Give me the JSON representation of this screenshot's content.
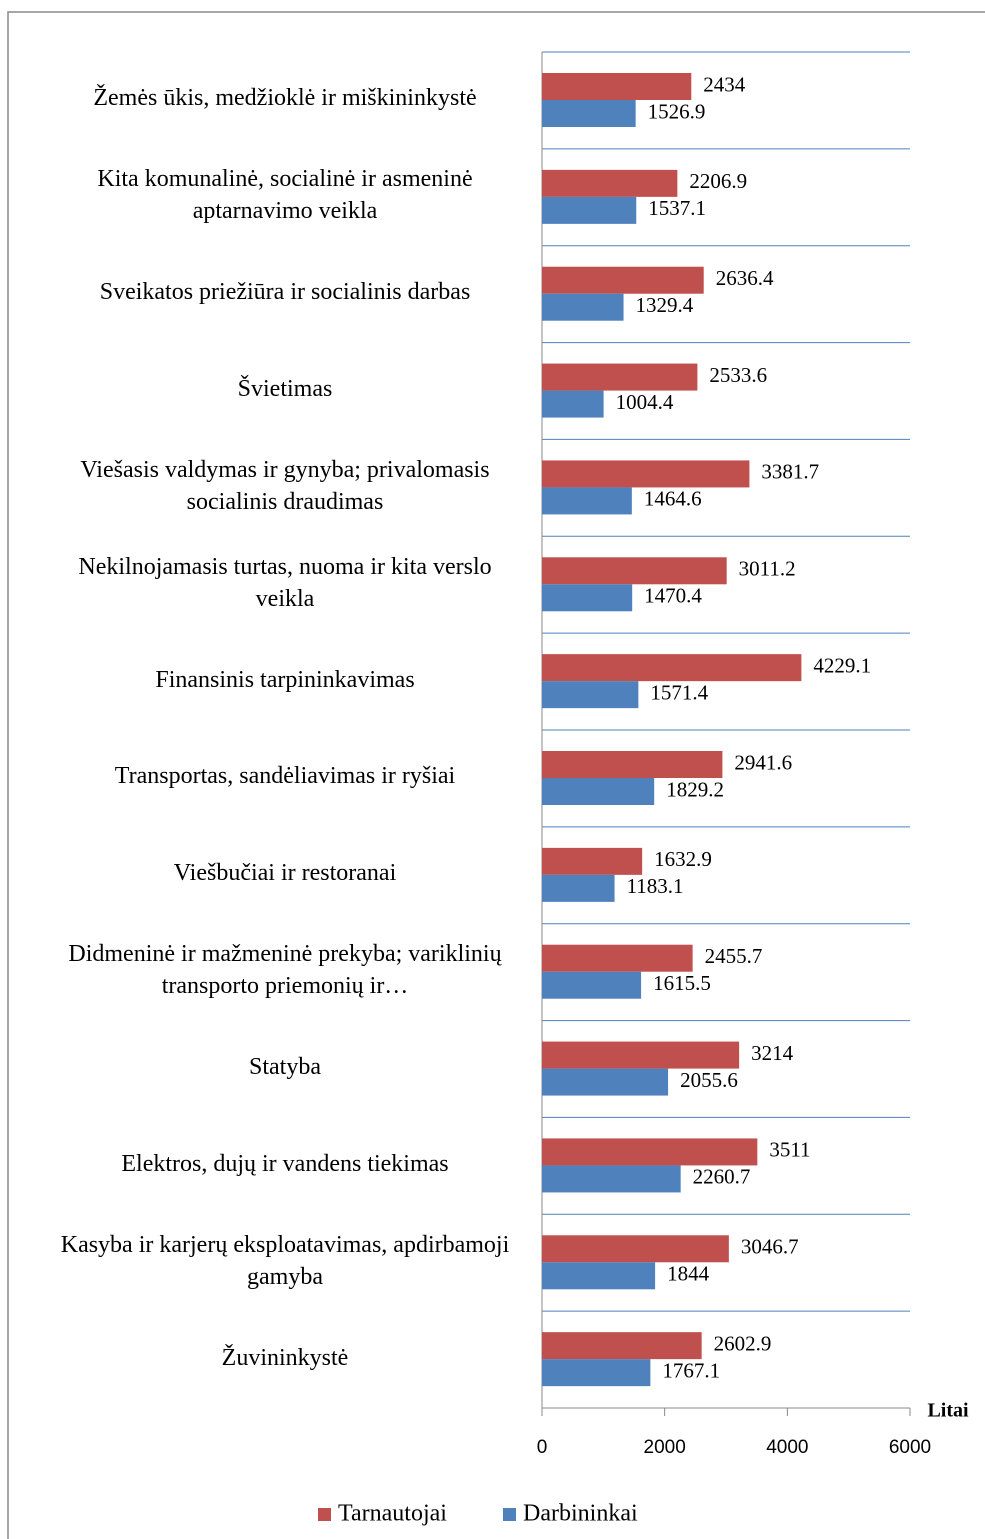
{
  "chart_data": {
    "type": "barh",
    "categories": [
      "Žemės ūkis, medžioklė ir miškininkystė",
      "Kita komunalinė, socialinė ir asmeninė aptarnavimo veikla",
      "Sveikatos priežiūra ir socialinis darbas",
      "Švietimas",
      "Viešasis valdymas ir gynyba; privalomasis socialinis draudimas",
      "Nekilnojamasis turtas, nuoma ir kita verslo veikla",
      "Finansinis tarpininkavimas",
      "Transportas, sandėliavimas ir ryšiai",
      "Viešbučiai ir restoranai",
      "Didmeninė ir mažmeninė prekyba; variklinių transporto priemonių ir…",
      "Statyba",
      "Elektros, dujų ir vandens tiekimas",
      "Kasyba ir karjerų eksploatavimas, apdirbamoji gamyba",
      "Žuvininkystė"
    ],
    "series": [
      {
        "name": "Tarnautojai",
        "color": "#c0504d",
        "values": [
          2434,
          2206.9,
          2636.4,
          2533.6,
          3381.7,
          3011.2,
          4229.1,
          2941.6,
          1632.9,
          2455.7,
          3214,
          3511,
          3046.7,
          2602.9
        ]
      },
      {
        "name": "Darbininkai",
        "color": "#4f81bd",
        "values": [
          1526.9,
          1537.1,
          1329.4,
          1004.4,
          1464.6,
          1470.4,
          1571.4,
          1829.2,
          1183.1,
          1615.5,
          2055.6,
          2260.7,
          1844,
          1767.1
        ]
      }
    ],
    "xlabel": "Litai",
    "xlim": [
      0,
      6000
    ],
    "xticks": [
      0,
      2000,
      4000,
      6000
    ],
    "legend": "bottom"
  }
}
